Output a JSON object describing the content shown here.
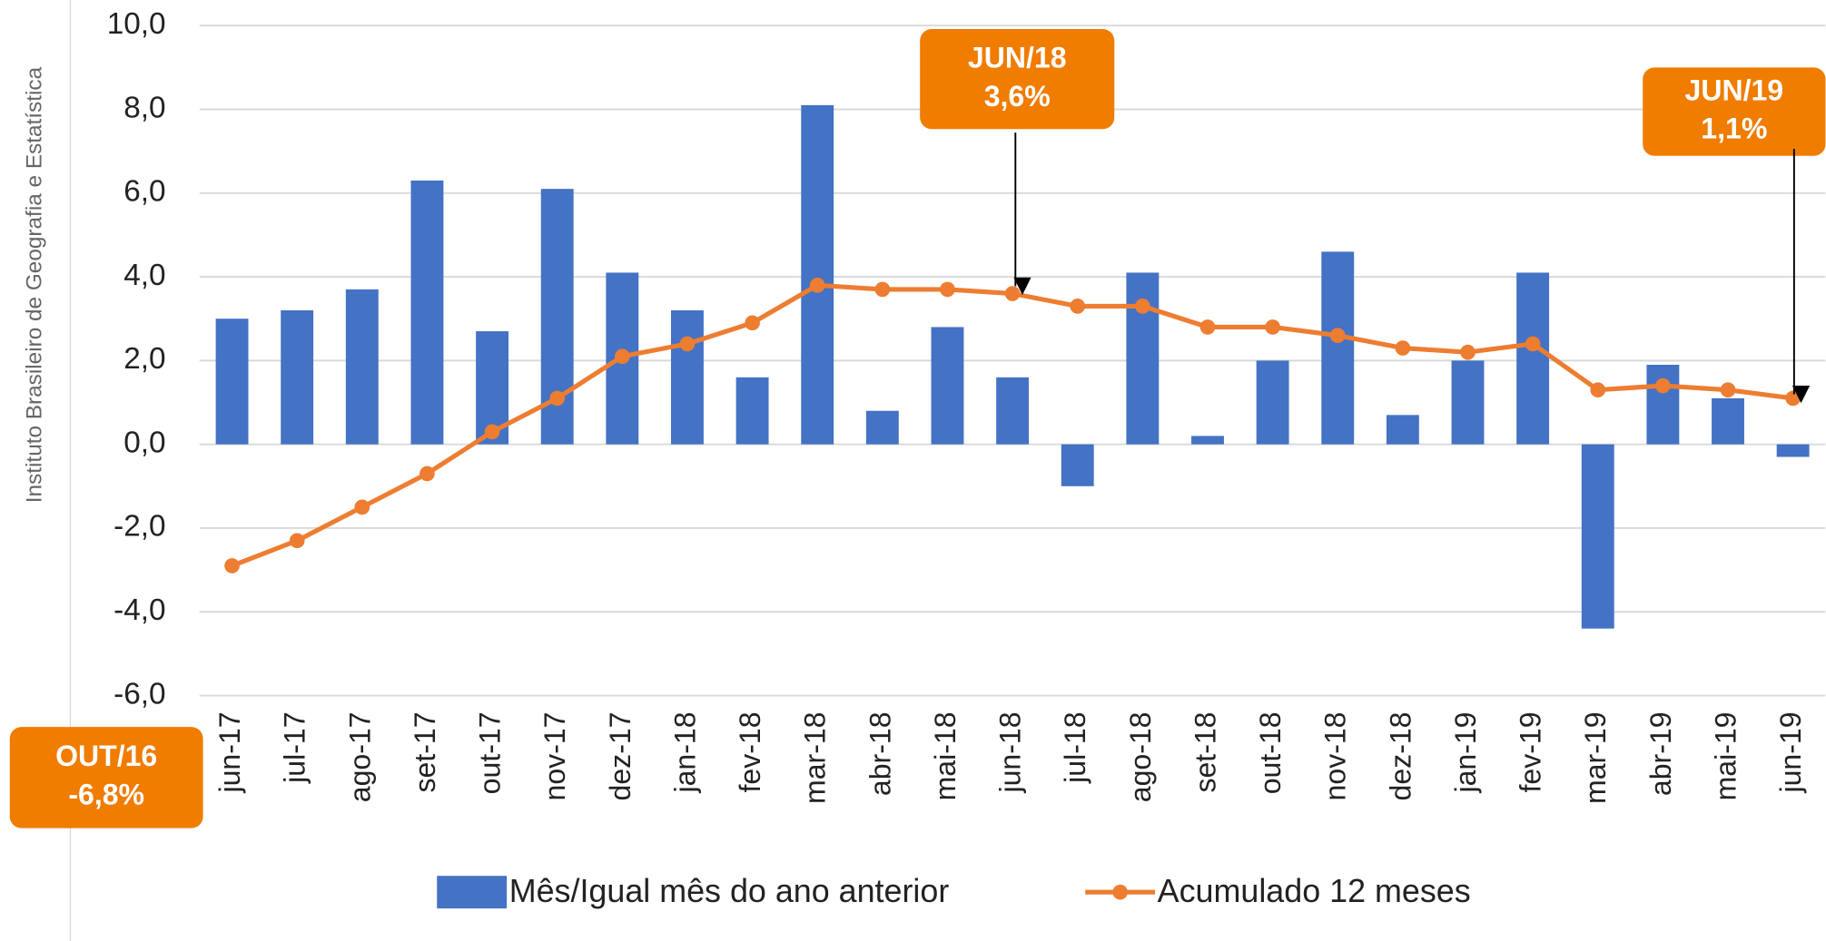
{
  "chart_data": {
    "type": "bar_line",
    "y_label": "Instituto Brasileiro de Geografia e Estatística",
    "categories": [
      "jun-17",
      "jul-17",
      "ago-17",
      "set-17",
      "out-17",
      "nov-17",
      "dez-17",
      "jan-18",
      "fev-18",
      "mar-18",
      "abr-18",
      "mai-18",
      "jun-18",
      "jul-18",
      "ago-18",
      "set-18",
      "out-18",
      "nov-18",
      "dez-18",
      "jan-19",
      "fev-19",
      "mar-19",
      "abr-19",
      "mai-19",
      "jun-19"
    ],
    "series": [
      {
        "name": "Mês/Igual mês do ano anterior",
        "type": "bar",
        "color": "#4472c4",
        "values": [
          3.0,
          3.2,
          3.7,
          6.3,
          2.7,
          6.1,
          4.1,
          3.2,
          1.6,
          8.1,
          0.8,
          2.8,
          1.6,
          -1.0,
          4.1,
          0.2,
          2.0,
          4.6,
          0.7,
          2.0,
          4.1,
          -4.4,
          1.9,
          1.1,
          -0.3
        ]
      },
      {
        "name": "Acumulado 12 meses",
        "type": "line",
        "color": "#ed7d31",
        "values": [
          -2.9,
          -2.3,
          -1.5,
          -0.7,
          0.3,
          1.1,
          2.1,
          2.4,
          2.9,
          3.8,
          3.7,
          3.7,
          3.6,
          3.3,
          3.3,
          2.8,
          2.8,
          2.6,
          2.3,
          2.2,
          2.4,
          1.3,
          1.4,
          1.3,
          1.1
        ]
      }
    ],
    "ylim": [
      -6,
      10
    ],
    "yticks": [
      {
        "value": -6,
        "label": "-6,0"
      },
      {
        "value": -4,
        "label": "-4,0"
      },
      {
        "value": -2,
        "label": "-2,0"
      },
      {
        "value": 0,
        "label": "0,0"
      },
      {
        "value": 2,
        "label": "2,0"
      },
      {
        "value": 4,
        "label": "4,0"
      },
      {
        "value": 6,
        "label": "6,0"
      },
      {
        "value": 8,
        "label": "8,0"
      },
      {
        "value": 10,
        "label": "10,0"
      }
    ],
    "grid": true,
    "legend": "bottom",
    "annotations": [
      {
        "lines": [
          "JUN/18",
          "3,6%"
        ]
      },
      {
        "lines": [
          "JUN/19",
          "1,1%"
        ]
      },
      {
        "lines": [
          "OUT/16",
          "-6,8%"
        ]
      }
    ]
  }
}
